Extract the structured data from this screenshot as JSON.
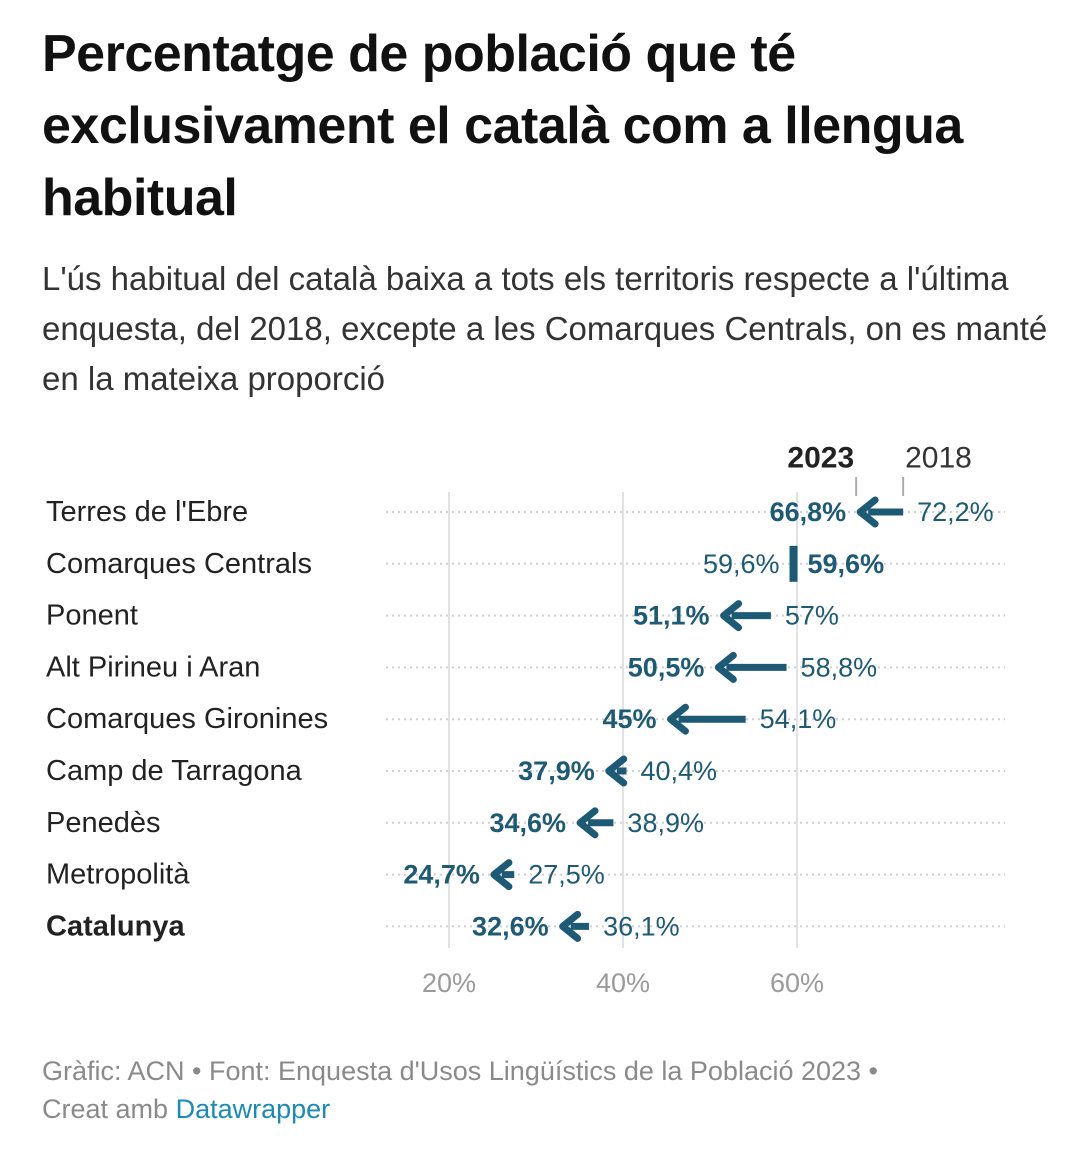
{
  "title": "Percentatge de població que té exclusivament el català com a llengua habitual",
  "subtitle": "L'ús habitual del català baixa a tots els territoris respecte a l'última enquesta, del 2018, excepte a les Comarques Centrals, on es manté en la mateixa proporció",
  "footer": {
    "line1": "Gràfic: ACN • Font: Enquesta d'Usos Lingüístics de la Població 2023 •",
    "made_with": "Creat amb",
    "link": "Datawrapper"
  },
  "chart_data": {
    "type": "arrow",
    "series_labels": {
      "end": "2023",
      "start": "2018"
    },
    "categories": [
      "Terres de l'Ebre",
      "Comarques Centrals",
      "Ponent",
      "Alt Pirineu i Aran",
      "Comarques Gironines",
      "Camp de Tarragona",
      "Penedès",
      "Metropolità",
      "Catalunya"
    ],
    "values_2018": [
      72.2,
      59.6,
      57,
      58.8,
      54.1,
      40.4,
      38.9,
      27.5,
      36.1
    ],
    "values_2023": [
      66.8,
      59.6,
      51.1,
      50.5,
      45,
      37.9,
      34.6,
      24.7,
      32.6
    ],
    "labels_2018": [
      "72,2%",
      "59,6%",
      "57%",
      "58,8%",
      "54,1%",
      "40,4%",
      "38,9%",
      "27,5%",
      "36,1%"
    ],
    "labels_2023": [
      "66,8%",
      "59,6%",
      "51,1%",
      "50,5%",
      "45%",
      "37,9%",
      "34,6%",
      "24,7%",
      "32,6%"
    ],
    "bold_categories": [
      "Catalunya"
    ],
    "x_ticks": [
      20,
      40,
      60
    ],
    "x_tick_labels": [
      "20%",
      "40%",
      "60%"
    ],
    "grid": true,
    "colors": {
      "arrow": "#1d5a75",
      "label": "#1d5a75",
      "category": "#222222",
      "tick": "#9a9a9a",
      "grid": "#e2e2e2",
      "dots": "#d0d0d0"
    }
  }
}
